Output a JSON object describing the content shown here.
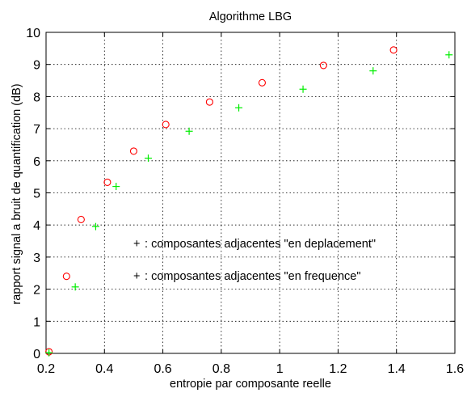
{
  "chart_data": {
    "type": "scatter",
    "title": "Algorithme LBG",
    "xlabel": "entropie par composante reelle",
    "ylabel": "rapport signal a bruit de quantification (dB)",
    "xlim": [
      0.2,
      1.6
    ],
    "ylim": [
      0,
      10
    ],
    "x_ticks": [
      0.2,
      0.4,
      0.6,
      0.8,
      1,
      1.2,
      1.4,
      1.6
    ],
    "y_ticks": [
      0,
      1,
      2,
      3,
      4,
      5,
      6,
      7,
      8,
      9,
      10
    ],
    "grid": true,
    "series": [
      {
        "marker": "circle",
        "color": "#ff0000",
        "x": [
          0.21,
          0.27,
          0.32,
          0.41,
          0.5,
          0.61,
          0.76,
          0.94,
          1.15,
          1.39
        ],
        "y": [
          0.05,
          2.4,
          4.17,
          5.33,
          6.3,
          7.13,
          7.83,
          8.43,
          8.97,
          9.45
        ]
      },
      {
        "marker": "plus",
        "color": "#00ee00",
        "x": [
          0.21,
          0.3,
          0.37,
          0.44,
          0.55,
          0.69,
          0.86,
          1.08,
          1.32,
          1.58
        ],
        "y": [
          0.02,
          2.07,
          3.95,
          5.2,
          6.08,
          6.92,
          7.65,
          8.23,
          8.8,
          9.3
        ]
      }
    ],
    "annotations": [
      {
        "marker_color": "#000000",
        "marker": "+",
        "text": " : composantes adjacentes \"en deplacement\""
      },
      {
        "marker_color": "#000000",
        "marker": "+",
        "text": " : composantes adjacentes \"en frequence\""
      }
    ]
  }
}
